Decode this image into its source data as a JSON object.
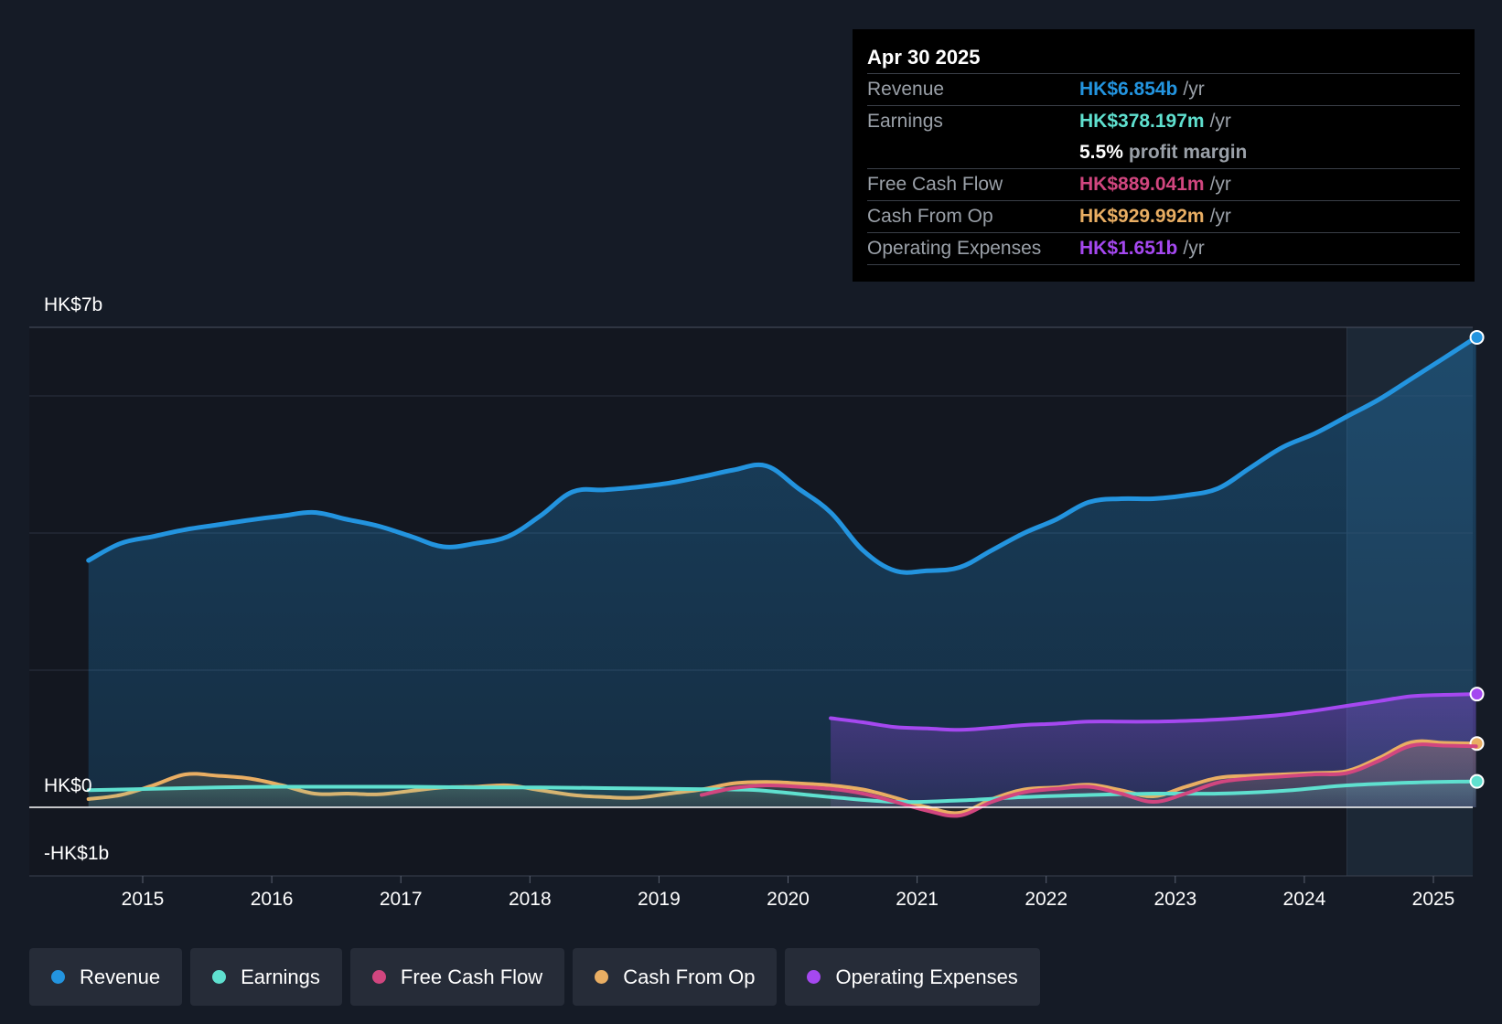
{
  "tooltip": {
    "date": "Apr 30 2025",
    "rows": {
      "revenue": {
        "label": "Revenue",
        "value": "HK$6.854b",
        "unit": "/yr"
      },
      "earnings": {
        "label": "Earnings",
        "value": "HK$378.197m",
        "unit": "/yr"
      },
      "margin": {
        "value": "5.5%",
        "text": "profit margin"
      },
      "fcf": {
        "label": "Free Cash Flow",
        "value": "HK$889.041m",
        "unit": "/yr"
      },
      "cfo": {
        "label": "Cash From Op",
        "value": "HK$929.992m",
        "unit": "/yr"
      },
      "opex": {
        "label": "Operating Expenses",
        "value": "HK$1.651b",
        "unit": "/yr"
      }
    }
  },
  "legend": {
    "revenue": "Revenue",
    "earnings": "Earnings",
    "fcf": "Free Cash Flow",
    "cfo": "Cash From Op",
    "opex": "Operating Expenses"
  },
  "colors": {
    "revenue": "#2394df",
    "earnings": "#5fe0cf",
    "fcf": "#d1467f",
    "cfo": "#e9ae63",
    "opex": "#a548f0"
  },
  "chart_data": {
    "type": "area",
    "title": "",
    "y_axis_labels": {
      "top": "HK$7b",
      "zero": "HK$0",
      "bottom": "-HK$1b"
    },
    "ylim": [
      -1,
      7
    ],
    "xlim": [
      2014.58,
      2025.33
    ],
    "forecast_shade_start": 2024.33,
    "x_ticks": [
      "2015",
      "2016",
      "2017",
      "2018",
      "2019",
      "2020",
      "2021",
      "2022",
      "2023",
      "2024",
      "2025"
    ],
    "series": [
      {
        "name": "Revenue",
        "key": "revenue",
        "x": [
          2014.58,
          2014.83,
          2015.08,
          2015.33,
          2015.58,
          2015.83,
          2016.08,
          2016.33,
          2016.58,
          2016.83,
          2017.08,
          2017.33,
          2017.58,
          2017.83,
          2018.08,
          2018.33,
          2018.58,
          2018.83,
          2019.08,
          2019.33,
          2019.58,
          2019.83,
          2020.08,
          2020.33,
          2020.58,
          2020.83,
          2021.08,
          2021.33,
          2021.58,
          2021.83,
          2022.08,
          2022.33,
          2022.58,
          2022.83,
          2023.08,
          2023.33,
          2023.58,
          2023.83,
          2024.08,
          2024.33,
          2024.58,
          2024.83,
          2025.08,
          2025.33
        ],
        "values": [
          3.6,
          3.85,
          3.95,
          4.05,
          4.12,
          4.19,
          4.25,
          4.3,
          4.2,
          4.1,
          3.95,
          3.8,
          3.85,
          3.95,
          4.25,
          4.6,
          4.63,
          4.67,
          4.73,
          4.82,
          4.92,
          4.98,
          4.65,
          4.3,
          3.75,
          3.45,
          3.45,
          3.5,
          3.75,
          4.0,
          4.2,
          4.45,
          4.5,
          4.5,
          4.55,
          4.65,
          4.95,
          5.25,
          5.45,
          5.7,
          5.95,
          6.25,
          6.55,
          6.854
        ]
      },
      {
        "name": "Earnings",
        "key": "earnings",
        "x": [
          2014.58,
          2015.08,
          2015.58,
          2016.08,
          2016.58,
          2017.08,
          2017.58,
          2018.08,
          2018.58,
          2019.08,
          2019.58,
          2019.83,
          2020.33,
          2020.83,
          2021.33,
          2021.83,
          2022.33,
          2022.83,
          2023.33,
          2023.83,
          2024.33,
          2024.83,
          2025.33
        ],
        "values": [
          0.25,
          0.27,
          0.29,
          0.3,
          0.3,
          0.3,
          0.29,
          0.29,
          0.28,
          0.27,
          0.26,
          0.24,
          0.15,
          0.08,
          0.1,
          0.15,
          0.18,
          0.2,
          0.2,
          0.24,
          0.32,
          0.36,
          0.378
        ]
      },
      {
        "name": "Free Cash Flow",
        "key": "fcf",
        "x": [
          2019.33,
          2019.58,
          2019.83,
          2020.08,
          2020.33,
          2020.58,
          2020.83,
          2021.08,
          2021.33,
          2021.58,
          2021.83,
          2022.08,
          2022.33,
          2022.58,
          2022.83,
          2023.08,
          2023.33,
          2023.58,
          2023.83,
          2024.08,
          2024.33,
          2024.58,
          2024.83,
          2025.08,
          2025.33
        ],
        "values": [
          0.18,
          0.28,
          0.32,
          0.3,
          0.27,
          0.2,
          0.08,
          -0.05,
          -0.12,
          0.08,
          0.22,
          0.27,
          0.3,
          0.2,
          0.08,
          0.2,
          0.36,
          0.42,
          0.45,
          0.48,
          0.5,
          0.68,
          0.9,
          0.9,
          0.889
        ]
      },
      {
        "name": "Cash From Op",
        "key": "cfo",
        "x": [
          2014.58,
          2014.83,
          2015.08,
          2015.33,
          2015.58,
          2015.83,
          2016.08,
          2016.33,
          2016.58,
          2016.83,
          2017.08,
          2017.33,
          2017.58,
          2017.83,
          2018.08,
          2018.33,
          2018.58,
          2018.83,
          2019.08,
          2019.33,
          2019.58,
          2019.83,
          2020.08,
          2020.33,
          2020.58,
          2020.83,
          2021.08,
          2021.33,
          2021.58,
          2021.83,
          2022.08,
          2022.33,
          2022.58,
          2022.83,
          2023.08,
          2023.33,
          2023.58,
          2023.83,
          2024.08,
          2024.33,
          2024.58,
          2024.83,
          2025.08,
          2025.33
        ],
        "values": [
          0.12,
          0.18,
          0.32,
          0.48,
          0.46,
          0.42,
          0.32,
          0.2,
          0.2,
          0.19,
          0.24,
          0.29,
          0.3,
          0.32,
          0.25,
          0.18,
          0.15,
          0.14,
          0.2,
          0.26,
          0.35,
          0.37,
          0.35,
          0.32,
          0.26,
          0.14,
          0.0,
          -0.08,
          0.12,
          0.26,
          0.29,
          0.33,
          0.25,
          0.16,
          0.3,
          0.43,
          0.46,
          0.48,
          0.5,
          0.53,
          0.72,
          0.95,
          0.94,
          0.93
        ]
      },
      {
        "name": "Operating Expenses",
        "key": "opex",
        "x": [
          2020.33,
          2020.58,
          2020.83,
          2021.08,
          2021.33,
          2021.58,
          2021.83,
          2022.08,
          2022.33,
          2022.58,
          2022.83,
          2023.08,
          2023.33,
          2023.58,
          2023.83,
          2024.08,
          2024.33,
          2024.58,
          2024.83,
          2025.08,
          2025.33
        ],
        "values": [
          1.3,
          1.24,
          1.17,
          1.15,
          1.13,
          1.16,
          1.2,
          1.22,
          1.25,
          1.25,
          1.25,
          1.26,
          1.28,
          1.31,
          1.35,
          1.41,
          1.48,
          1.55,
          1.62,
          1.64,
          1.651
        ]
      }
    ]
  }
}
